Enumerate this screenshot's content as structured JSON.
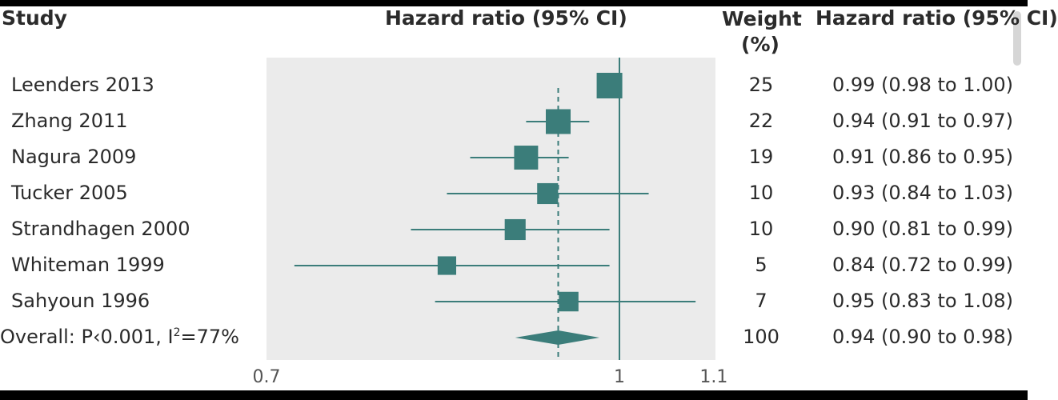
{
  "header": {
    "study": "Study",
    "plot_title": "Hazard ratio (95% CI)",
    "weight_line1": "Weight",
    "weight_line2": "(%)",
    "hr_col": "Hazard ratio (95% CI)"
  },
  "overall": {
    "label_prefix": "Overall: P‹0.001, I",
    "label_sup": "2",
    "label_suffix": "=77%"
  },
  "chart_data": {
    "type": "forest",
    "x_scale": "log",
    "xlim": [
      0.7,
      1.1
    ],
    "x_ticks": [
      0.7,
      1,
      1.1
    ],
    "x_tick_labels": [
      "0.7",
      "1",
      "1.1"
    ],
    "reference_line": 1,
    "overall_line": 0.94,
    "studies": [
      {
        "name": "Leenders 2013",
        "weight": 25,
        "hr": 0.99,
        "lo": 0.98,
        "hi": 1.0,
        "label": "0.99 (0.98 to 1.00)"
      },
      {
        "name": "Zhang 2011",
        "weight": 22,
        "hr": 0.94,
        "lo": 0.91,
        "hi": 0.97,
        "label": "0.94 (0.91 to 0.97)"
      },
      {
        "name": "Nagura 2009",
        "weight": 19,
        "hr": 0.91,
        "lo": 0.86,
        "hi": 0.95,
        "label": "0.91 (0.86 to 0.95)"
      },
      {
        "name": "Tucker 2005",
        "weight": 10,
        "hr": 0.93,
        "lo": 0.84,
        "hi": 1.03,
        "label": "0.93 (0.84 to 1.03)"
      },
      {
        "name": "Strandhagen 2000",
        "weight": 10,
        "hr": 0.9,
        "lo": 0.81,
        "hi": 0.99,
        "label": "0.90 (0.81 to 0.99)"
      },
      {
        "name": "Whiteman 1999",
        "weight": 5,
        "hr": 0.84,
        "lo": 0.72,
        "hi": 0.99,
        "label": "0.84 (0.72 to 0.99)"
      },
      {
        "name": "Sahyoun 1996",
        "weight": 7,
        "hr": 0.95,
        "lo": 0.83,
        "hi": 1.08,
        "label": "0.95 (0.83 to 1.08)"
      }
    ],
    "pooled": {
      "weight": 100,
      "hr": 0.94,
      "lo": 0.9,
      "hi": 0.98,
      "label": "0.94 (0.90 to 0.98)"
    },
    "colors": {
      "marker": "#3b7d7a",
      "panel": "#ebebeb",
      "axis": "#3b7d7a",
      "text": "#2b2b2b"
    }
  }
}
